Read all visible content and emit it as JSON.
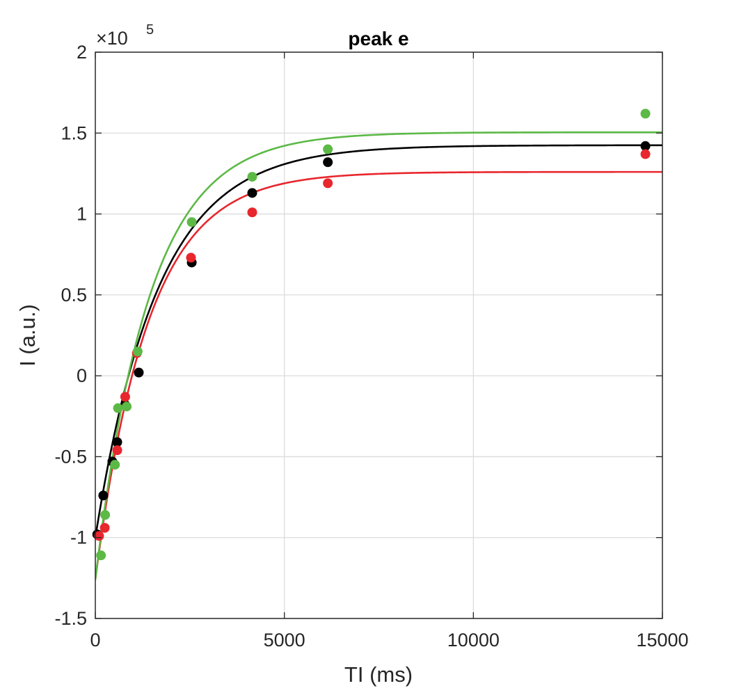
{
  "chart_data": {
    "type": "scatter",
    "title": "peak e",
    "xlabel": "TI (ms)",
    "ylabel": "I (a.u.)",
    "xlim": [
      0,
      15000
    ],
    "ylim": [
      -1.5,
      2
    ],
    "x_ticks": [
      0,
      5000,
      10000,
      15000
    ],
    "x_tick_labels": [
      "0",
      "5000",
      "10000",
      "15000"
    ],
    "y_ticks": [
      -1.5,
      -1,
      -0.5,
      0,
      0.5,
      1,
      1.5,
      2
    ],
    "y_tick_labels": [
      "-1.5",
      "-1",
      "-0.5",
      "0",
      "0.5",
      "1",
      "1.5",
      "2"
    ],
    "y_exponent": {
      "base": "×10",
      "power": "5"
    },
    "grid": true,
    "series": [
      {
        "name": "black",
        "color": "#000000",
        "points": [
          [
            50,
            -0.98
          ],
          [
            210,
            -0.74
          ],
          [
            450,
            -0.53
          ],
          [
            580,
            -0.41
          ],
          [
            790,
            -0.18
          ],
          [
            1150,
            0.02
          ],
          [
            2550,
            0.7
          ],
          [
            4150,
            1.13
          ],
          [
            6150,
            1.32
          ],
          [
            14550,
            1.42
          ]
        ],
        "fit": {
          "A": 1.425,
          "B": 2.425,
          "T1": 1650
        }
      },
      {
        "name": "red",
        "color": "#e8262d",
        "points": [
          [
            100,
            -0.99
          ],
          [
            250,
            -0.94
          ],
          [
            580,
            -0.46
          ],
          [
            790,
            -0.13
          ],
          [
            1100,
            0.14
          ],
          [
            2530,
            0.73
          ],
          [
            4150,
            1.01
          ],
          [
            6150,
            1.19
          ],
          [
            14550,
            1.37
          ]
        ],
        "fit": {
          "A": 1.26,
          "B": 2.52,
          "T1": 1400
        }
      },
      {
        "name": "green",
        "color": "#5cb946",
        "points": [
          [
            150,
            -1.11
          ],
          [
            260,
            -0.86
          ],
          [
            520,
            -0.55
          ],
          [
            600,
            -0.2
          ],
          [
            830,
            -0.19
          ],
          [
            1120,
            0.15
          ],
          [
            2550,
            0.95
          ],
          [
            4150,
            1.23
          ],
          [
            6150,
            1.4
          ],
          [
            14550,
            1.62
          ]
        ],
        "fit": {
          "A": 1.505,
          "B": 2.765,
          "T1": 1430
        }
      }
    ]
  }
}
